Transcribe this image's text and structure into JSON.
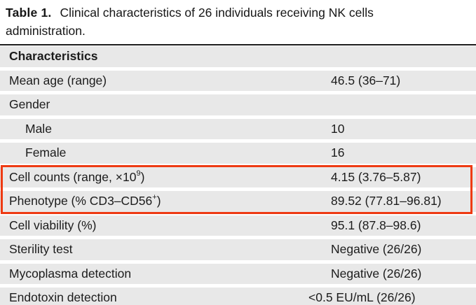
{
  "title": {
    "label": "Table 1.",
    "line1": "Clinical characteristics of 26 individuals receiving NK cells",
    "line2": "administration."
  },
  "colors": {
    "row_background": "#e8e8e8",
    "top_rule": "#1e1e1e",
    "text": "#1c1c1c",
    "highlight_box": "#ee3a12"
  },
  "table": {
    "header": "Characteristics",
    "rows": [
      {
        "label": [
          {
            "t": "Mean age (range)"
          }
        ],
        "value": "46.5 (36–71)",
        "indent": false,
        "highlight": false,
        "value_shift": false
      },
      {
        "label": [
          {
            "t": "Gender"
          }
        ],
        "value": "",
        "indent": false,
        "highlight": false,
        "value_shift": false
      },
      {
        "label": [
          {
            "t": "Male"
          }
        ],
        "value": "10",
        "indent": true,
        "highlight": false,
        "value_shift": false
      },
      {
        "label": [
          {
            "t": "Female"
          }
        ],
        "value": "16",
        "indent": true,
        "highlight": false,
        "value_shift": false
      },
      {
        "label": [
          {
            "t": "Cell counts (range, ×10"
          },
          {
            "t": "9",
            "sup": true
          },
          {
            "t": ")"
          }
        ],
        "value": "4.15 (3.76–5.87)",
        "indent": false,
        "highlight": true,
        "value_shift": false
      },
      {
        "label": [
          {
            "t": "Phenotype (% CD3–CD56"
          },
          {
            "t": "+",
            "sup": true
          },
          {
            "t": ")"
          }
        ],
        "value": "89.52 (77.81–96.81)",
        "indent": false,
        "highlight": true,
        "value_shift": false
      },
      {
        "label": [
          {
            "t": "Cell viability (%)"
          }
        ],
        "value": "95.1 (87.8–98.6)",
        "indent": false,
        "highlight": false,
        "value_shift": false
      },
      {
        "label": [
          {
            "t": "Sterility test"
          }
        ],
        "value": "Negative (26/26)",
        "indent": false,
        "highlight": false,
        "value_shift": false
      },
      {
        "label": [
          {
            "t": "Mycoplasma detection"
          }
        ],
        "value": "Negative (26/26)",
        "indent": false,
        "highlight": false,
        "value_shift": false
      },
      {
        "label": [
          {
            "t": "Endotoxin detection"
          }
        ],
        "value": "<0.5 EU/mL (26/26)",
        "indent": false,
        "highlight": false,
        "value_shift": true
      }
    ]
  },
  "annotation": {
    "type": "highlight-box",
    "color": "#ee3a12"
  }
}
